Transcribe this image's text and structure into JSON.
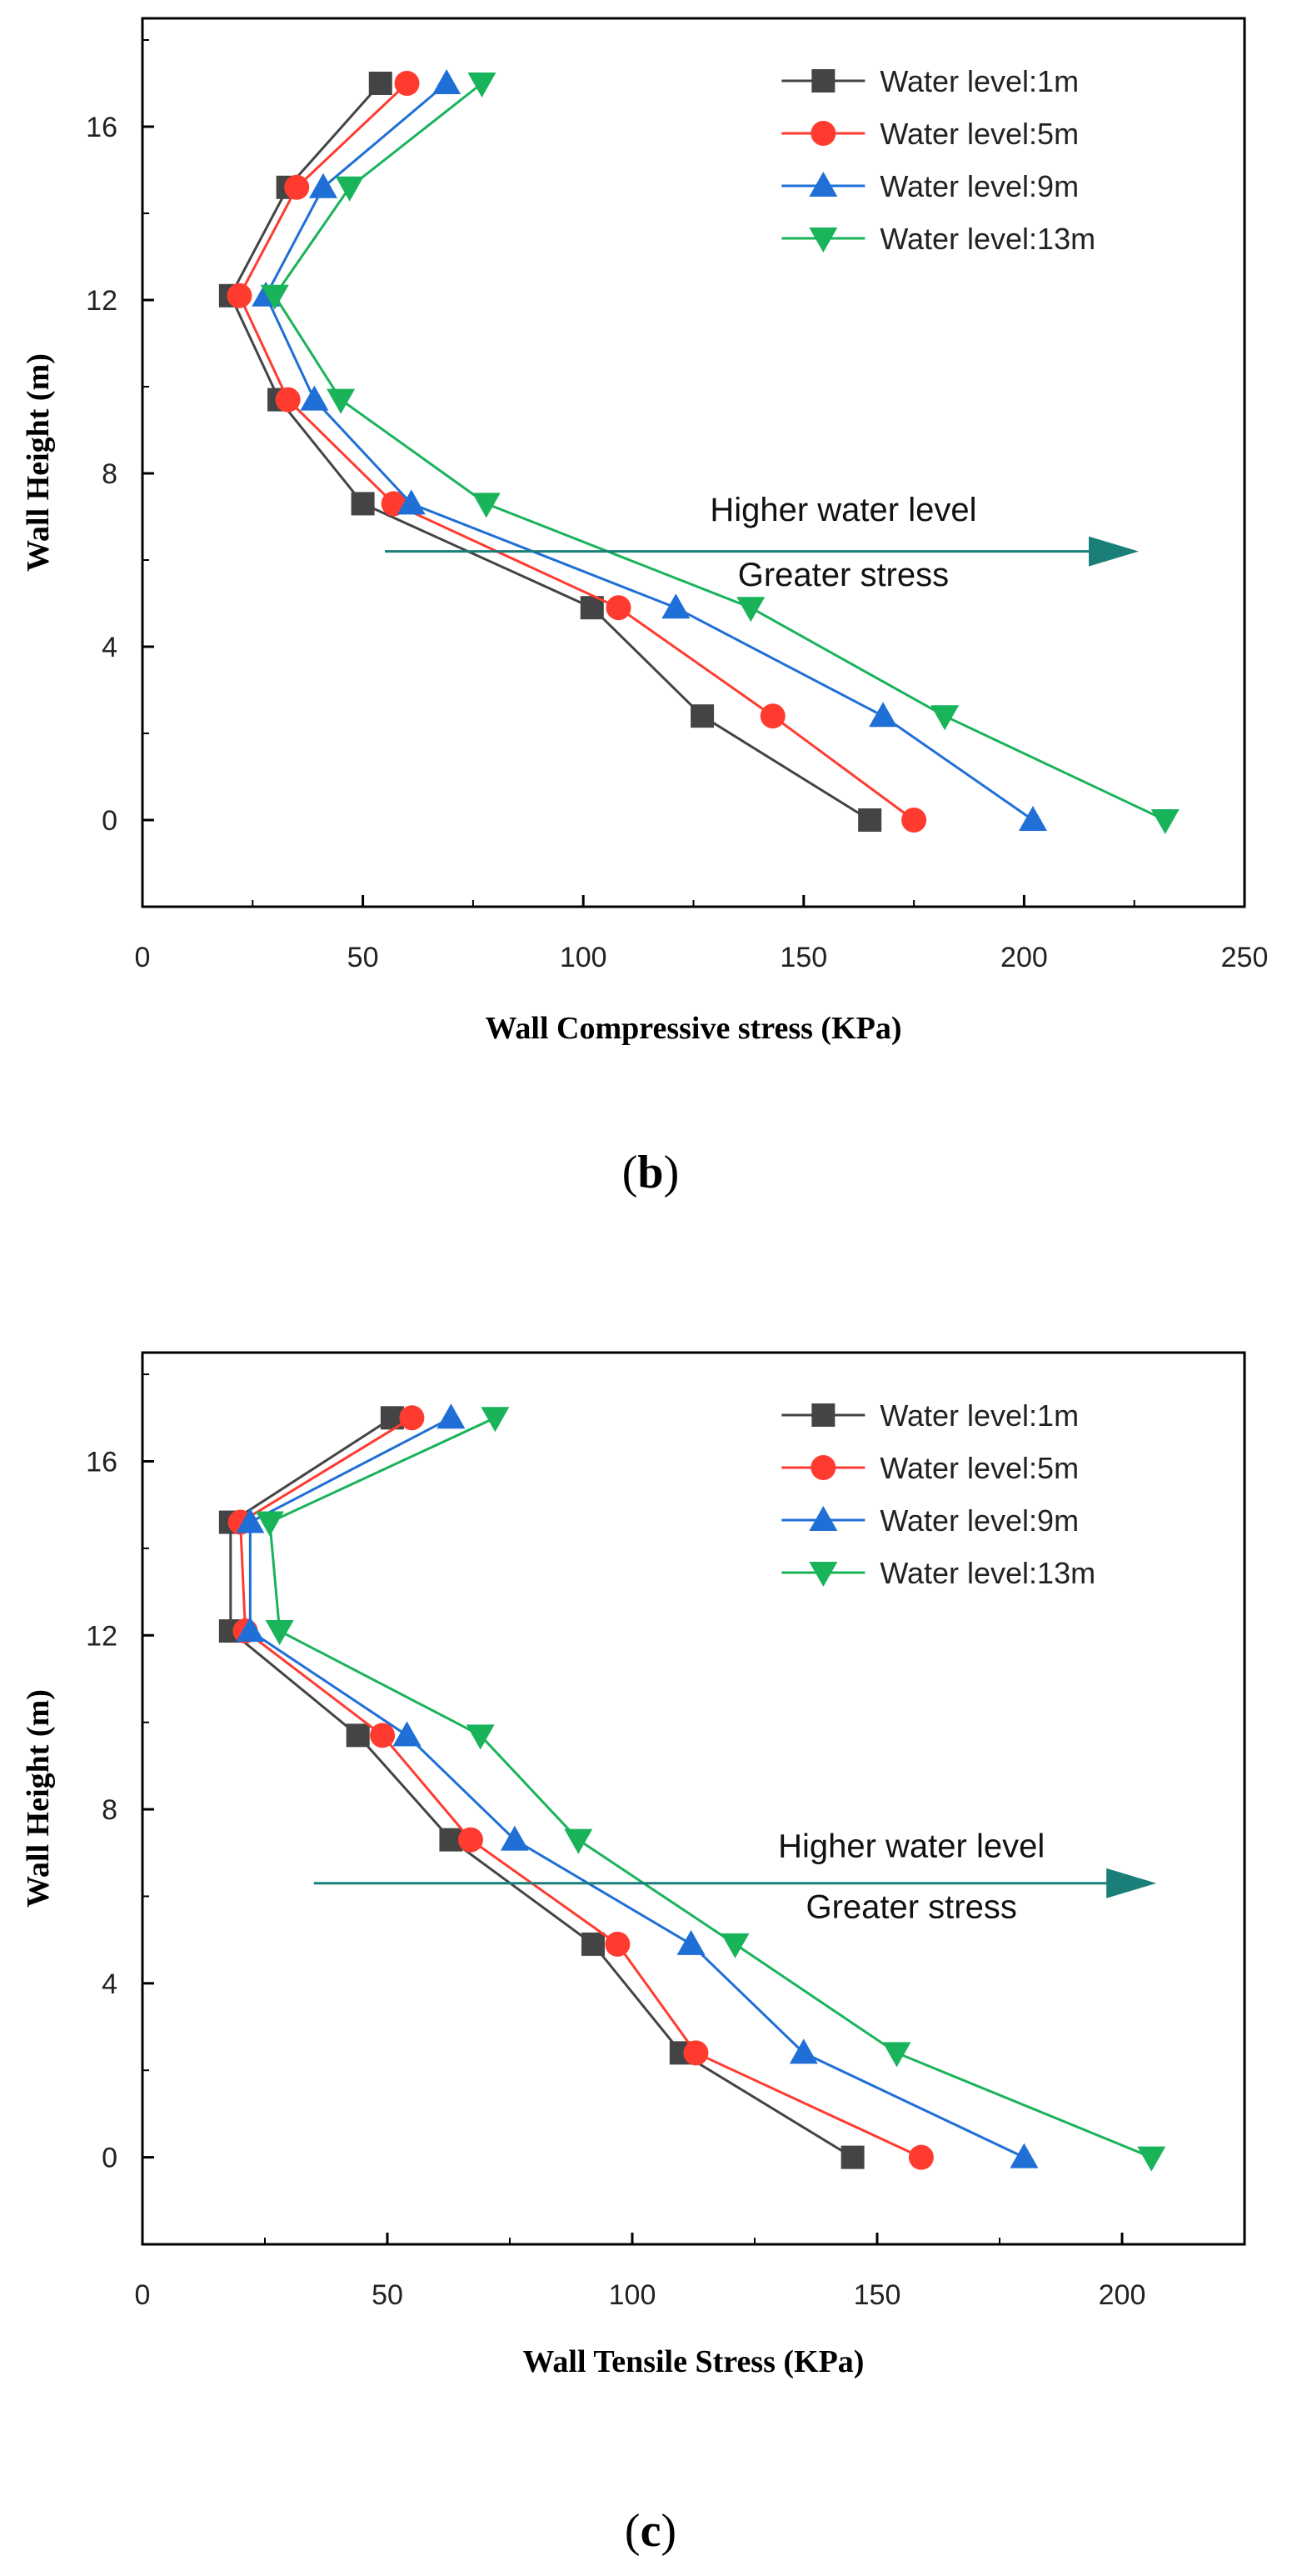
{
  "chart_data": [
    {
      "type": "line",
      "panel_label": "b",
      "xlabel": "Wall Compressive stress (KPa)",
      "ylabel": "Wall Height (m)",
      "xlim": [
        0,
        250
      ],
      "ylim": [
        -2,
        18.5
      ],
      "xticks": [
        0,
        50,
        100,
        150,
        200,
        250
      ],
      "yticks": [
        0,
        4,
        8,
        12,
        16
      ],
      "grid": false,
      "legend_position": "top-right",
      "series": [
        {
          "name": "Water level:1m",
          "color": "#444444",
          "marker": "square",
          "x": [
            54,
            33,
            20,
            31,
            50,
            102,
            127,
            165
          ],
          "y": [
            17,
            14.6,
            12.1,
            9.7,
            7.3,
            4.9,
            2.4,
            0
          ]
        },
        {
          "name": "Water level:5m",
          "color": "#ff3b30",
          "marker": "circle",
          "x": [
            60,
            35,
            22,
            33,
            57,
            108,
            143,
            175
          ],
          "y": [
            17,
            14.6,
            12.1,
            9.7,
            7.3,
            4.9,
            2.4,
            0
          ]
        },
        {
          "name": "Water level:9m",
          "color": "#1f6fd6",
          "marker": "triangle-up",
          "x": [
            69,
            41,
            28,
            39,
            61,
            121,
            168,
            202
          ],
          "y": [
            17,
            14.6,
            12.1,
            9.7,
            7.3,
            4.9,
            2.4,
            0
          ]
        },
        {
          "name": "Water level:13m",
          "color": "#19b35a",
          "marker": "triangle-down",
          "x": [
            77,
            47,
            30,
            45,
            78,
            138,
            182,
            232
          ],
          "y": [
            17,
            14.6,
            12.1,
            9.7,
            7.3,
            4.9,
            2.4,
            0
          ]
        }
      ],
      "annotation": {
        "line1": "Higher water level",
        "line2": "Greater stress",
        "arrow_color": "#1b7f79",
        "arrow_x": [
          55,
          226
        ],
        "arrow_y": 6.2,
        "text_x": 159,
        "text_y1": 6.9,
        "text_y2": 5.4
      }
    },
    {
      "type": "line",
      "panel_label": "c",
      "xlabel": "Wall Tensile Stress (KPa)",
      "ylabel": "Wall Height (m)",
      "xlim": [
        0,
        225
      ],
      "ylim": [
        -2,
        18.5
      ],
      "xticks": [
        0,
        50,
        100,
        150,
        200
      ],
      "yticks": [
        0,
        4,
        8,
        12,
        16
      ],
      "grid": false,
      "legend_position": "top-right",
      "series": [
        {
          "name": "Water level:1m",
          "color": "#444444",
          "marker": "square",
          "x": [
            51,
            18,
            18,
            44,
            63,
            92,
            110,
            145
          ],
          "y": [
            17,
            14.6,
            12.1,
            9.7,
            7.3,
            4.9,
            2.4,
            0
          ]
        },
        {
          "name": "Water level:5m",
          "color": "#ff3b30",
          "marker": "circle",
          "x": [
            55,
            20,
            21,
            49,
            67,
            97,
            113,
            159
          ],
          "y": [
            17,
            14.6,
            12.1,
            9.7,
            7.3,
            4.9,
            2.4,
            0
          ]
        },
        {
          "name": "Water level:9m",
          "color": "#1f6fd6",
          "marker": "triangle-up",
          "x": [
            63,
            22,
            22,
            54,
            76,
            112,
            135,
            180
          ],
          "y": [
            17,
            14.6,
            12.1,
            9.7,
            7.3,
            4.9,
            2.4,
            0
          ]
        },
        {
          "name": "Water level:13m",
          "color": "#19b35a",
          "marker": "triangle-down",
          "x": [
            72,
            26,
            28,
            69,
            89,
            121,
            154,
            206
          ],
          "y": [
            17,
            14.6,
            12.1,
            9.7,
            7.3,
            4.9,
            2.4,
            0
          ]
        }
      ],
      "annotation": {
        "line1": "Higher water level",
        "line2": "Greater stress",
        "arrow_color": "#1b7f79",
        "arrow_x": [
          35,
          207
        ],
        "arrow_y": 6.3,
        "text_x": 157,
        "text_y1": 6.9,
        "text_y2": 5.5
      }
    }
  ]
}
